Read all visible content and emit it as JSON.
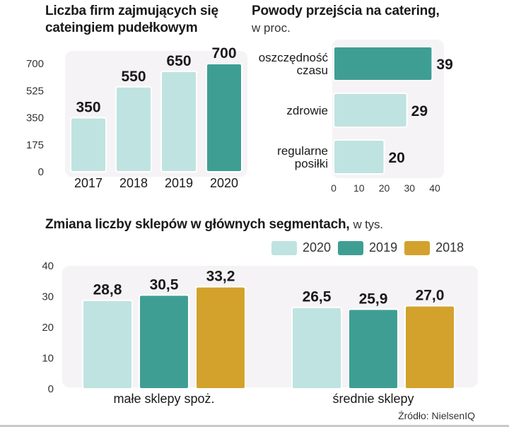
{
  "colors": {
    "c2020": "#bfe3e0",
    "c2019": "#3f9e94",
    "c2018": "#d3a22c",
    "panel_bg": "#f5f3f5",
    "bar_stroke": "#ffffff"
  },
  "chart_data": [
    {
      "id": "firms",
      "type": "bar",
      "title": "Liczba firm zajmujących się",
      "title_line2": "cateingiem pudełkowym",
      "categories": [
        "2017",
        "2018",
        "2019",
        "2020"
      ],
      "values": [
        350,
        550,
        650,
        700
      ],
      "value_labels": [
        "350",
        "550",
        "650",
        "700"
      ],
      "yticks": [
        "700",
        "525",
        "350",
        "175",
        "0"
      ],
      "ylim": [
        0,
        700
      ],
      "highlight_index": 3,
      "grid": false
    },
    {
      "id": "reasons",
      "type": "bar",
      "orientation": "horizontal",
      "title": "Powody przejścia na catering,",
      "subtitle": "w proc.",
      "categories": [
        [
          "oszczędność",
          "czasu"
        ],
        [
          "zdrowie"
        ],
        [
          "regularne",
          "posiłki"
        ]
      ],
      "values": [
        39,
        29,
        20
      ],
      "value_labels": [
        "39",
        "29",
        "20"
      ],
      "xticks": [
        "0",
        "10",
        "20",
        "30",
        "40"
      ],
      "xlim": [
        0,
        40
      ],
      "highlight_index": 0,
      "grid": false
    },
    {
      "id": "shops",
      "type": "bar",
      "title": "Zmiana liczby sklepów w głównych segmentach,",
      "subtitle": "w tys.",
      "groups": [
        "małe sklepy spoż.",
        "średnie sklepy"
      ],
      "series": [
        {
          "name": "2020",
          "values": [
            28.8,
            26.5
          ],
          "labels": [
            "28,8",
            "26,5"
          ]
        },
        {
          "name": "2019",
          "values": [
            30.5,
            25.9
          ],
          "labels": [
            "30,5",
            "25,9"
          ]
        },
        {
          "name": "2018",
          "values": [
            33.2,
            27.0
          ],
          "labels": [
            "33,2",
            "27,0"
          ]
        }
      ],
      "yticks": [
        "40",
        "30",
        "20",
        "10",
        "0"
      ],
      "ylim": [
        0,
        40
      ],
      "legend": "top-right",
      "grid": false
    }
  ],
  "source": "Źródło: NielsenIQ"
}
